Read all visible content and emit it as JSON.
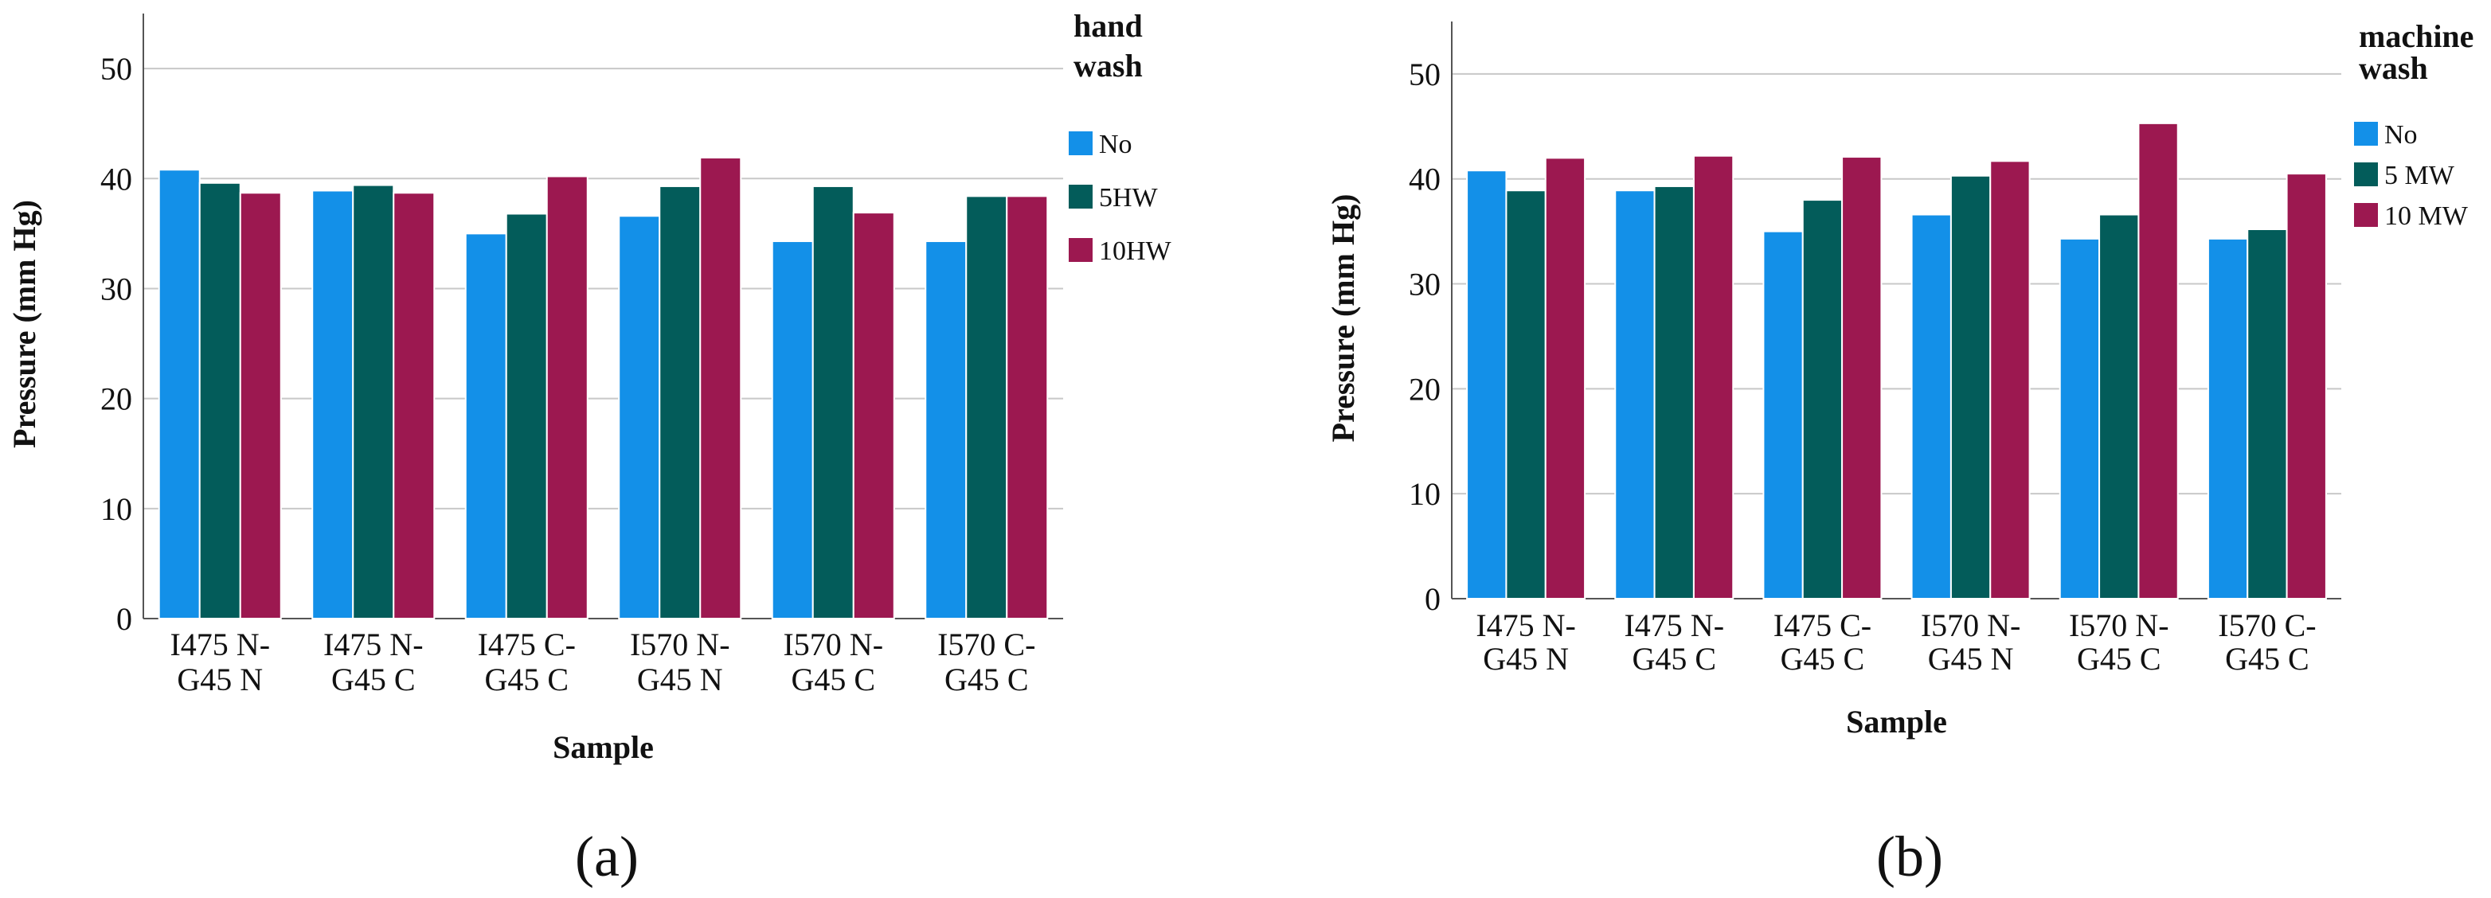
{
  "colors": {
    "No": "#1390e8",
    "Mid": "#035c5a",
    "High": "#9c1850"
  },
  "chart_data": [
    {
      "type": "bar",
      "caption": "(a)",
      "ylabel": "Pressure (mm Hg)",
      "xlabel": "Sample",
      "ylim": [
        0,
        55
      ],
      "yticks": [
        0,
        10,
        20,
        30,
        40,
        50
      ],
      "grid": true,
      "legend_title": [
        "hand",
        "wash"
      ],
      "legend_position": "right",
      "categories": [
        [
          "I475 N-",
          "G45 N"
        ],
        [
          "I475 N-",
          "G45 C"
        ],
        [
          "I475 C-",
          "G45 C"
        ],
        [
          "I570 N-",
          "G45 N"
        ],
        [
          "I570 N-",
          "G45 C"
        ],
        [
          "I570 C-",
          "G45 C"
        ]
      ],
      "series": [
        {
          "name": "No",
          "color": "#1390e8",
          "values": [
            40.8,
            38.9,
            35.0,
            36.6,
            34.3,
            34.3
          ]
        },
        {
          "name": "5HW",
          "color": "#035c5a",
          "values": [
            39.6,
            39.4,
            36.8,
            39.3,
            39.3,
            38.4
          ]
        },
        {
          "name": "10HW",
          "color": "#9c1850",
          "values": [
            38.7,
            38.7,
            40.2,
            41.9,
            36.9,
            38.4
          ]
        }
      ]
    },
    {
      "type": "bar",
      "caption": "(b)",
      "ylabel": "Pressure (mm Hg)",
      "xlabel": "Sample",
      "ylim": [
        0,
        55
      ],
      "yticks": [
        0,
        10,
        20,
        30,
        40,
        50
      ],
      "grid": true,
      "legend_title": [
        "machine",
        "wash"
      ],
      "legend_position": "right",
      "categories": [
        [
          "I475 N-",
          "G45 N"
        ],
        [
          "I475 N-",
          "G45 C"
        ],
        [
          "I475 C-",
          "G45 C"
        ],
        [
          "I570 N-",
          "G45 N"
        ],
        [
          "I570 N-",
          "G45 C"
        ],
        [
          "I570 C-",
          "G45 C"
        ]
      ],
      "series": [
        {
          "name": "No",
          "color": "#1390e8",
          "values": [
            40.8,
            38.9,
            35.0,
            36.6,
            34.3,
            34.3
          ]
        },
        {
          "name": "5 MW",
          "color": "#035c5a",
          "values": [
            38.9,
            39.3,
            38.0,
            40.3,
            36.6,
            35.2
          ]
        },
        {
          "name": "10 MW",
          "color": "#9c1850",
          "values": [
            42.0,
            42.2,
            42.1,
            41.7,
            45.3,
            40.5
          ]
        }
      ]
    }
  ]
}
